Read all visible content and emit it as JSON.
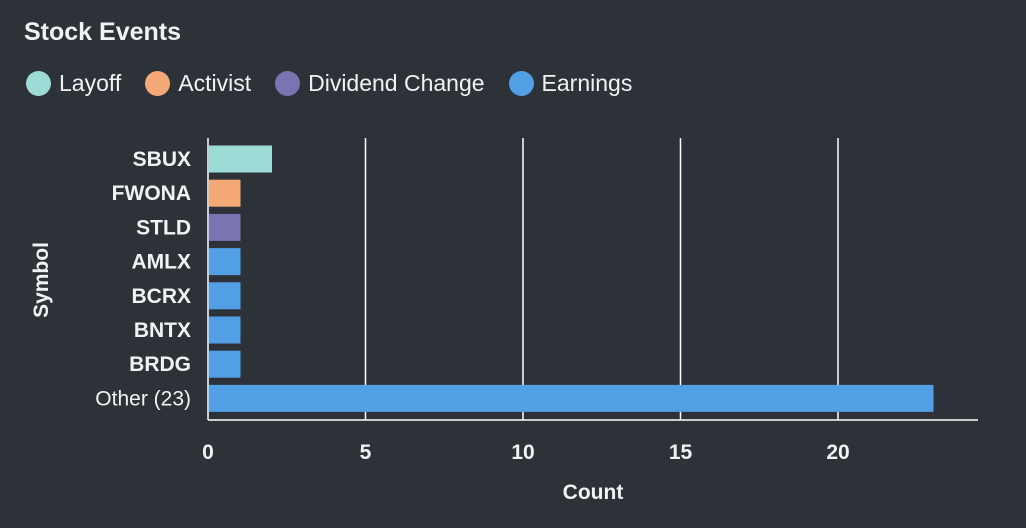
{
  "chart_data": {
    "type": "bar",
    "orientation": "horizontal",
    "title": "Stock Events",
    "xlabel": "Count",
    "ylabel": "Symbol",
    "xlim": [
      0,
      24.5
    ],
    "xticks": [
      0,
      5,
      10,
      15,
      20
    ],
    "grid": "vertical",
    "legend_position": "top-left",
    "legend": [
      {
        "name": "Layoff",
        "color": "#9ddcd6"
      },
      {
        "name": "Activist",
        "color": "#f5a976"
      },
      {
        "name": "Dividend Change",
        "color": "#7b74b3"
      },
      {
        "name": "Earnings",
        "color": "#539fe6"
      }
    ],
    "categories": [
      "SBUX",
      "FWONA",
      "STLD",
      "AMLX",
      "BCRX",
      "BNTX",
      "BRDG",
      "Other (23)"
    ],
    "values": [
      2,
      1,
      1,
      1,
      1,
      1,
      1,
      23
    ],
    "category_series": [
      "Layoff",
      "Activist",
      "Dividend Change",
      "Earnings",
      "Earnings",
      "Earnings",
      "Earnings",
      "Earnings"
    ]
  }
}
